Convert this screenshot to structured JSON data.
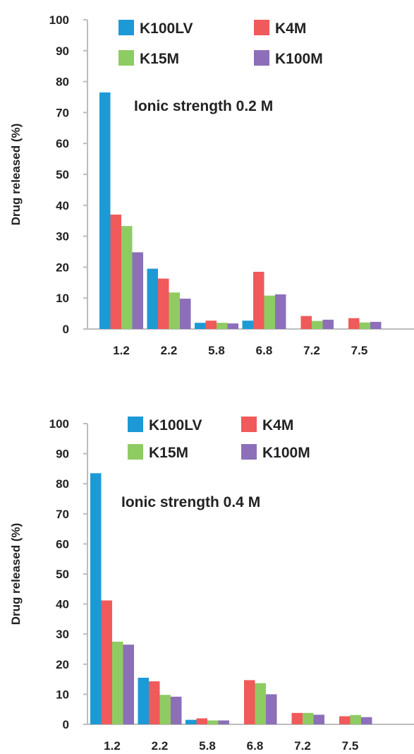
{
  "series_colors": {
    "K100LV": "#1c9ad6",
    "K4M": "#f05a5a",
    "K15M": "#8fcb63",
    "K100M": "#8c6fb8"
  },
  "chart_data": [
    {
      "type": "bar",
      "ylabel": "Drug released (%)",
      "annotation": "Ionic strength 0.2 M",
      "ylim": [
        0,
        100
      ],
      "yticks": [
        0,
        10,
        20,
        30,
        40,
        50,
        60,
        70,
        80,
        90,
        100
      ],
      "categories": [
        "1.2",
        "2.2",
        "5.8",
        "6.8",
        "7.2",
        "7.5"
      ],
      "legend_position": "top",
      "series": [
        {
          "name": "K100LV",
          "values": [
            76.5,
            19.5,
            2.0,
            2.7,
            0,
            0
          ]
        },
        {
          "name": "K4M",
          "values": [
            37.0,
            16.3,
            2.7,
            18.5,
            4.2,
            3.5
          ]
        },
        {
          "name": "K15M",
          "values": [
            33.3,
            11.8,
            2.0,
            10.8,
            2.6,
            2.1
          ]
        },
        {
          "name": "K100M",
          "values": [
            24.8,
            9.8,
            1.8,
            11.2,
            3.0,
            2.3
          ]
        }
      ]
    },
    {
      "type": "bar",
      "ylabel": "Drug released (%)",
      "annotation": "Ionic strength 0.4 M",
      "ylim": [
        0,
        100
      ],
      "yticks": [
        0,
        10,
        20,
        30,
        40,
        50,
        60,
        70,
        80,
        90,
        100
      ],
      "categories": [
        "1.2",
        "2.2",
        "5.8",
        "6.8",
        "7.2",
        "7.5"
      ],
      "legend_position": "top",
      "series": [
        {
          "name": "K100LV",
          "values": [
            83.5,
            15.5,
            1.5,
            0,
            0,
            0
          ]
        },
        {
          "name": "K4M",
          "values": [
            41.2,
            14.3,
            2.0,
            14.7,
            3.8,
            2.7
          ]
        },
        {
          "name": "K15M",
          "values": [
            27.5,
            9.8,
            1.3,
            13.7,
            3.8,
            3.1
          ]
        },
        {
          "name": "K100M",
          "values": [
            26.5,
            9.2,
            1.3,
            10.0,
            3.2,
            2.4
          ]
        }
      ]
    }
  ]
}
